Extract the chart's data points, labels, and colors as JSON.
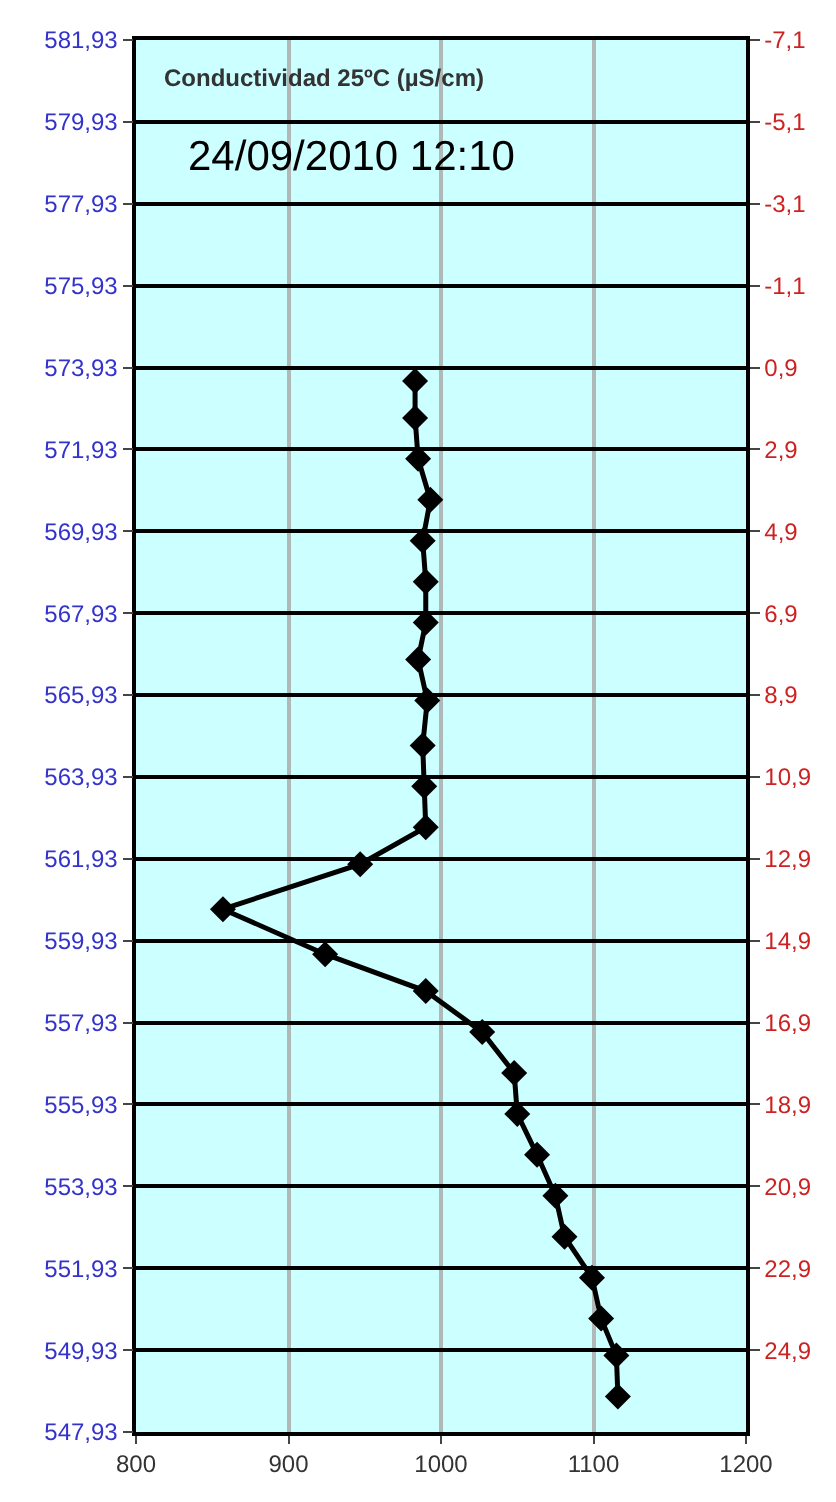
{
  "chart_data": {
    "type": "line",
    "title": "Conductividad 25ºC (µS/cm)",
    "subtitle": "24/09/2010 12:10",
    "series": [
      {
        "color": "#000000",
        "x": [
          983,
          983,
          985,
          993,
          988,
          990,
          990,
          985,
          991,
          988,
          989,
          990,
          947,
          857,
          924,
          990,
          1027,
          1048,
          1050,
          1063,
          1075,
          1081,
          1099,
          1105,
          1115,
          1116
        ],
        "values": [
          573.6,
          572.7,
          571.7,
          570.7,
          569.7,
          568.7,
          567.7,
          566.8,
          565.8,
          564.7,
          563.7,
          562.7,
          561.8,
          560.7,
          559.6,
          558.7,
          557.7,
          556.7,
          555.7,
          554.7,
          553.7,
          552.7,
          551.7,
          550.7,
          549.8,
          548.8
        ]
      }
    ],
    "marker": "diamond",
    "line_style": "solid",
    "grid": true,
    "xlim": [
      800,
      1200
    ],
    "xticks": [
      800,
      900,
      1000,
      1100,
      1200
    ],
    "ylim": [
      547.93,
      581.93
    ],
    "yticks": [
      {
        "value": 547.93,
        "label": "547,93"
      },
      {
        "value": 549.93,
        "label": "549,93"
      },
      {
        "value": 551.93,
        "label": "551,93"
      },
      {
        "value": 553.93,
        "label": "553,93"
      },
      {
        "value": 555.93,
        "label": "555,93"
      },
      {
        "value": 557.93,
        "label": "557,93"
      },
      {
        "value": 559.93,
        "label": "559,93"
      },
      {
        "value": 561.93,
        "label": "561,93"
      },
      {
        "value": 563.93,
        "label": "563,93"
      },
      {
        "value": 565.93,
        "label": "565,93"
      },
      {
        "value": 567.93,
        "label": "567,93"
      },
      {
        "value": 569.93,
        "label": "569,93"
      },
      {
        "value": 571.93,
        "label": "571,93"
      },
      {
        "value": 573.93,
        "label": "573,93"
      },
      {
        "value": 575.93,
        "label": "575,93"
      },
      {
        "value": 577.93,
        "label": "577,93"
      },
      {
        "value": 579.93,
        "label": "579,93"
      },
      {
        "value": 581.93,
        "label": "581,93"
      }
    ],
    "y2lim": [
      26.9,
      -7.1
    ],
    "y2ticks": [
      {
        "value": -7.1,
        "label": "-7,1"
      },
      {
        "value": -5.1,
        "label": "-5,1"
      },
      {
        "value": -3.1,
        "label": "-3,1"
      },
      {
        "value": -1.1,
        "label": "-1,1"
      },
      {
        "value": 0.9,
        "label": "0,9"
      },
      {
        "value": 2.9,
        "label": "2,9"
      },
      {
        "value": 4.9,
        "label": "4,9"
      },
      {
        "value": 6.9,
        "label": "6,9"
      },
      {
        "value": 8.9,
        "label": "8,9"
      },
      {
        "value": 10.9,
        "label": "10,9"
      },
      {
        "value": 12.9,
        "label": "12,9"
      },
      {
        "value": 14.9,
        "label": "14,9"
      },
      {
        "value": 16.9,
        "label": "16,9"
      },
      {
        "value": 18.9,
        "label": "18,9"
      },
      {
        "value": 20.9,
        "label": "20,9"
      },
      {
        "value": 22.9,
        "label": "22,9"
      },
      {
        "value": 24.9,
        "label": "24,9"
      }
    ]
  }
}
